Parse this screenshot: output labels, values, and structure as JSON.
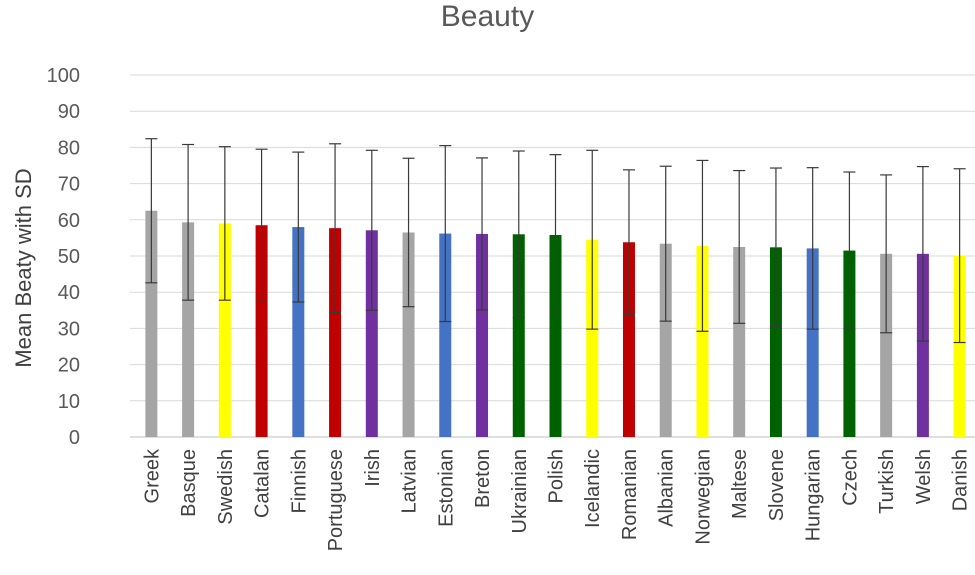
{
  "chart_data": {
    "type": "bar",
    "title": "Beauty",
    "xlabel": "",
    "ylabel": "Mean Beaty with SD",
    "ylim": [
      0,
      100
    ],
    "yticks": [
      0,
      10,
      20,
      30,
      40,
      50,
      60,
      70,
      80,
      90,
      100
    ],
    "grid": true,
    "legend": "none",
    "categories": [
      "Greek",
      "Basque",
      "Swedish",
      "Catalan",
      "Finnish",
      "Portuguese",
      "Irish",
      "Latvian",
      "Estonian",
      "Breton",
      "Ukrainian",
      "Polish",
      "Icelandic",
      "Romanian",
      "Albanian",
      "Norwegian",
      "Maltese",
      "Slovene",
      "Hungarian",
      "Czech",
      "Turkish",
      "Welsh",
      "Danish"
    ],
    "values": [
      62.5,
      59.3,
      59.0,
      58.5,
      58.0,
      57.7,
      57.1,
      56.5,
      56.2,
      56.1,
      56.0,
      55.8,
      54.5,
      53.8,
      53.4,
      52.8,
      52.5,
      52.4,
      52.1,
      51.5,
      50.6,
      50.6,
      50.1
    ],
    "sd": [
      19.9,
      21.5,
      21.2,
      21.0,
      20.7,
      23.3,
      22.1,
      20.5,
      24.3,
      21.0,
      23.0,
      22.2,
      24.7,
      20.0,
      21.4,
      23.6,
      21.1,
      21.9,
      22.3,
      21.7,
      21.8,
      24.1,
      24.0
    ],
    "colors": [
      "#a5a5a5",
      "#a5a5a5",
      "#ffff00",
      "#c00000",
      "#4472c4",
      "#c00000",
      "#7030a0",
      "#a5a5a5",
      "#4472c4",
      "#7030a0",
      "#006100",
      "#006100",
      "#ffff00",
      "#c00000",
      "#a5a5a5",
      "#ffff00",
      "#a5a5a5",
      "#006100",
      "#4472c4",
      "#006100",
      "#a5a5a5",
      "#7030a0",
      "#ffff00"
    ]
  }
}
